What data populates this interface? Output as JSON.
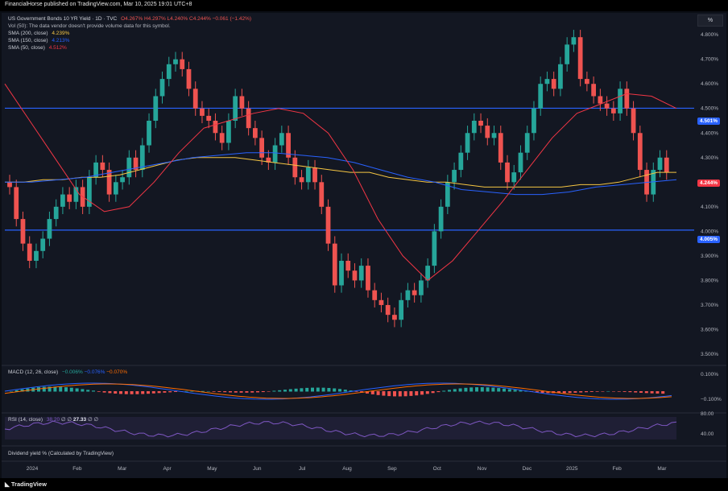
{
  "header": {
    "publisher_text": "FinancialHorse published on TradingView.com, Mar 10, 2025 19:01 UTC+8"
  },
  "symbol": {
    "title": "US Government Bonds 10 YR Yield · 1D · TVC",
    "o": "O4.267%",
    "h": "H4.297%",
    "l": "L4.240%",
    "c": "C4.244%",
    "chg": "−0.061 (−1.42%)"
  },
  "indicators": {
    "vol": "Vol (50): The data vendor doesn't provide volume data for this symbol.",
    "sma200_label": "SMA (200, close)",
    "sma200_val": "4.239%",
    "sma150_label": "SMA (150, close)",
    "sma150_val": "4.213%",
    "sma50_label": "SMA (50, close)",
    "sma50_val": "4.512%"
  },
  "price_axis": {
    "ticks": [
      "4.800%",
      "4.700%",
      "4.600%",
      "4.500%",
      "4.400%",
      "4.300%",
      "4.200%",
      "4.100%",
      "4.000%",
      "3.900%",
      "3.800%",
      "3.700%",
      "3.600%",
      "3.500%"
    ],
    "tag_upper": "4.501%",
    "tag_current": "4.244%",
    "tag_lower": "4.005%",
    "scale_button": "%"
  },
  "macd": {
    "label": "MACD (12, 26, close)",
    "v1": "−0.006%",
    "v2": "−0.076%",
    "v3": "−0.070%",
    "ticks": [
      "0.100%",
      "−0.100%"
    ]
  },
  "rsi": {
    "label": "RSI (14, close)",
    "v1": "38.20",
    "v2": "∅",
    "v3": "∅",
    "v4": "27.33",
    "v5": "∅",
    "v6": "∅",
    "ticks": [
      "80.00",
      "40.00"
    ]
  },
  "dividend": {
    "label": "Dividend yield % (Calculated by TradingView)"
  },
  "time_axis": {
    "labels": [
      "2024",
      "Feb",
      "Mar",
      "Apr",
      "May",
      "Jun",
      "Jul",
      "Aug",
      "Sep",
      "Oct",
      "Nov",
      "Dec",
      "2025",
      "Feb",
      "Mar"
    ]
  },
  "footer": {
    "brand": "TradingView"
  },
  "colors": {
    "up": "#26a69a",
    "down": "#ef5350",
    "sma200": "#f5c542",
    "sma150": "#2962ff",
    "sma50": "#f23645",
    "hline": "#2962ff",
    "macd": "#2962ff",
    "signal": "#ff6d00",
    "rsi": "#7e57c2"
  },
  "chart_data": {
    "type": "candlestick",
    "series_close": [
      4.18,
      4.05,
      3.95,
      3.88,
      3.92,
      3.97,
      4.05,
      4.1,
      4.15,
      4.12,
      4.18,
      4.1,
      4.22,
      4.28,
      4.25,
      4.15,
      4.2,
      4.22,
      4.3,
      4.25,
      4.35,
      4.45,
      4.55,
      4.62,
      4.68,
      4.7,
      4.66,
      4.58,
      4.5,
      4.47,
      4.45,
      4.4,
      4.36,
      4.45,
      4.55,
      4.5,
      4.42,
      4.38,
      4.3,
      4.28,
      4.35,
      4.4,
      4.3,
      4.22,
      4.2,
      4.26,
      4.2,
      4.1,
      3.95,
      3.78,
      3.88,
      3.84,
      3.8,
      3.86,
      3.76,
      3.72,
      3.7,
      3.66,
      3.64,
      3.72,
      3.76,
      3.74,
      3.8,
      3.86,
      4.0,
      4.1,
      4.2,
      4.25,
      4.32,
      4.4,
      4.45,
      4.43,
      4.38,
      4.4,
      4.28,
      4.2,
      4.24,
      4.32,
      4.4,
      4.5,
      4.6,
      4.62,
      4.58,
      4.68,
      4.76,
      4.79,
      4.62,
      4.6,
      4.55,
      4.52,
      4.5,
      4.48,
      4.58,
      4.5,
      4.4,
      4.25,
      4.15,
      4.25,
      4.3,
      4.24
    ],
    "sma200": [
      4.2,
      4.2,
      4.21,
      4.21,
      4.22,
      4.22,
      4.23,
      4.25,
      4.27,
      4.29,
      4.3,
      4.3,
      4.3,
      4.29,
      4.28,
      4.27,
      4.26,
      4.25,
      4.24,
      4.24,
      4.22,
      4.21,
      4.2,
      4.2,
      4.19,
      4.18,
      4.18,
      4.18,
      4.18,
      4.18,
      4.19,
      4.19,
      4.2,
      4.22,
      4.24,
      4.24
    ],
    "sma150": [
      4.2,
      4.2,
      4.21,
      4.22,
      4.24,
      4.26,
      4.28,
      4.3,
      4.31,
      4.32,
      4.32,
      4.31,
      4.3,
      4.28,
      4.25,
      4.22,
      4.2,
      4.17,
      4.16,
      4.15,
      4.15,
      4.16,
      4.18,
      4.19,
      4.2,
      4.21
    ],
    "sma50": [
      4.6,
      4.45,
      4.3,
      4.15,
      4.08,
      4.1,
      4.2,
      4.32,
      4.42,
      4.45,
      4.48,
      4.5,
      4.48,
      4.4,
      4.25,
      4.05,
      3.9,
      3.8,
      3.88,
      4.0,
      4.12,
      4.25,
      4.38,
      4.48,
      4.52,
      4.56,
      4.55,
      4.5
    ],
    "hlines": [
      4.501,
      4.005
    ],
    "ylim": [
      3.5,
      4.83
    ],
    "rsi_ylim": [
      20,
      90
    ]
  }
}
